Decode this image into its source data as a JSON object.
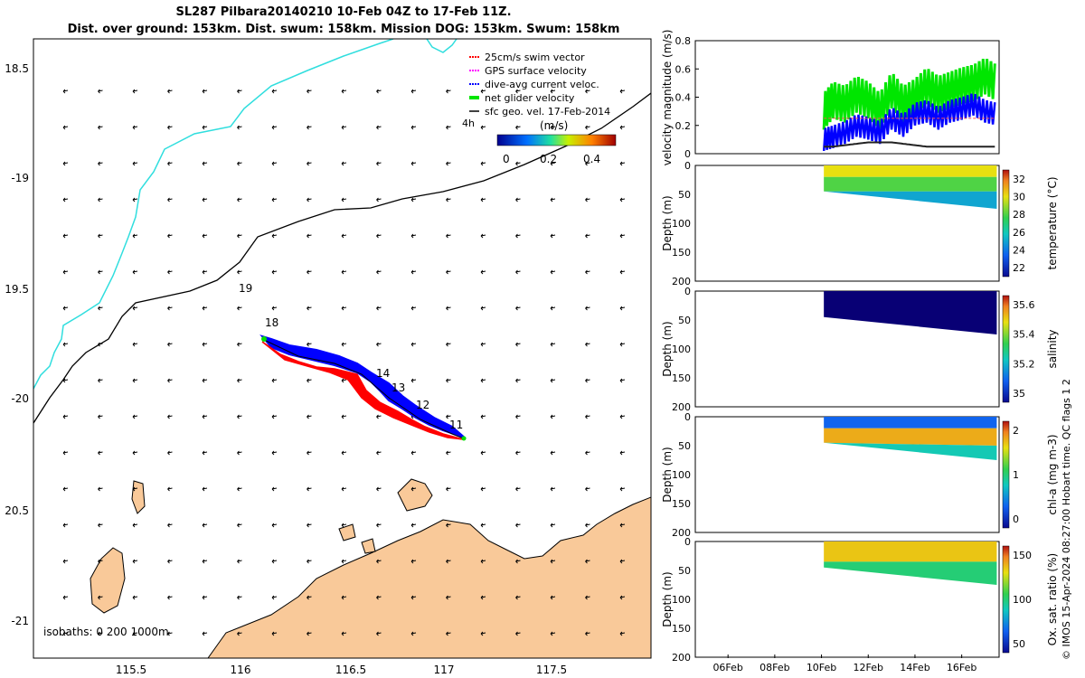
{
  "title": {
    "line1": "SL287 Pilbara20140210 10-Feb 04Z to 17-Feb 11Z.",
    "line2": "Dist. over ground: 153km. Dist. swum: 158km. Mission DOG: 153km. Swum: 158km"
  },
  "legend": {
    "items": [
      {
        "label": "25cm/s swim vector",
        "color": "#ff0000"
      },
      {
        "label": "GPS surface velocity",
        "color": "#ff00ff"
      },
      {
        "label": "dive-avg current veloc.",
        "color": "#0000ff"
      },
      {
        "label": "net glider velocity",
        "color": "#00e600"
      },
      {
        "label": "sfc geo. vel. 17-Feb-2014",
        "color": "#000000"
      }
    ],
    "time_label": "4h",
    "colorbar_unit": "(m/s)",
    "colorbar_ticks": [
      "0",
      "0.2",
      "0.4"
    ]
  },
  "colors": {
    "land": "#f9c999",
    "coast_line": "#30dede",
    "track_red": "#ff0000",
    "track_blue": "#0000ff"
  },
  "map": {
    "lat_ticks": [
      "18.5",
      "-19",
      "19.5",
      "-20",
      "20.5",
      "-21"
    ],
    "lon_ticks": [
      "115.5",
      "116",
      "116.5",
      "117",
      "117.5"
    ],
    "isobath_label": "isobaths: 0   200  1000m",
    "day_labels": [
      "19",
      "18",
      "14",
      "13",
      "12",
      "11"
    ]
  },
  "chart_data": [
    {
      "type": "line",
      "title": "",
      "ylabel": "velocity magnitude (m/s)",
      "ylim": [
        0,
        0.8
      ],
      "yticks": [
        "0",
        "0.2",
        "0.4",
        "0.6",
        "0.8"
      ],
      "x": [
        10.1,
        10.5,
        11,
        11.5,
        12,
        12.5,
        13,
        13.5,
        14,
        14.5,
        15,
        15.5,
        16,
        16.5,
        17,
        17.5
      ],
      "series": [
        {
          "name": "net glider velocity",
          "values": [
            0.3,
            0.38,
            0.35,
            0.42,
            0.38,
            0.3,
            0.45,
            0.35,
            0.4,
            0.48,
            0.42,
            0.45,
            0.48,
            0.5,
            0.55,
            0.5
          ]
        },
        {
          "name": "dive-avg current veloc.",
          "values": [
            0.1,
            0.12,
            0.15,
            0.2,
            0.18,
            0.15,
            0.25,
            0.2,
            0.28,
            0.3,
            0.25,
            0.3,
            0.32,
            0.35,
            0.3,
            0.28
          ]
        },
        {
          "name": "sfc geo. vel.",
          "values": [
            0.05,
            0.05,
            0.06,
            0.07,
            0.08,
            0.08,
            0.08,
            0.07,
            0.06,
            0.05,
            0.05,
            0.05,
            0.05,
            0.05,
            0.05,
            0.05
          ]
        },
        {
          "name": "25cm/s swim vector",
          "values": [
            0.25,
            0.25,
            0.25,
            0.25,
            0.25,
            0.25,
            0.25,
            0.25,
            0.25,
            0.25,
            0.25,
            0.25,
            0.25,
            0.25,
            0.25,
            0.25
          ]
        }
      ]
    },
    {
      "type": "heatmap",
      "ylabel": "Depth (m)",
      "yticks": [
        "0",
        "50",
        "100",
        "150",
        "200"
      ],
      "ylim": [
        200,
        0
      ],
      "colorbar_label": "temperature (°C)",
      "colorbar_ticks": [
        "32",
        "30",
        "28",
        "26",
        "24",
        "22"
      ],
      "profile_bottom": [
        {
          "day": 10.1,
          "depth": 45
        },
        {
          "day": 17.5,
          "depth": 75
        }
      ],
      "layers": [
        {
          "depth_from": 0,
          "depth_to": 20,
          "value": 30
        },
        {
          "depth_from": 20,
          "depth_to": 45,
          "value": 28
        },
        {
          "depth_from": 45,
          "depth_to": 75,
          "value": 25
        }
      ]
    },
    {
      "type": "heatmap",
      "ylabel": "Depth (m)",
      "yticks": [
        "0",
        "50",
        "100",
        "150",
        "200"
      ],
      "ylim": [
        200,
        0
      ],
      "colorbar_label": "salinity",
      "colorbar_ticks": [
        "35.6",
        "35.4",
        "35.2",
        "35"
      ],
      "profile_bottom": [
        {
          "day": 10.1,
          "depth": 45
        },
        {
          "day": 17.5,
          "depth": 75
        }
      ],
      "layers": [
        {
          "depth_from": 0,
          "depth_to": 75,
          "value": 34.9
        }
      ]
    },
    {
      "type": "heatmap",
      "ylabel": "Depth (m)",
      "yticks": [
        "0",
        "50",
        "100",
        "150",
        "200"
      ],
      "ylim": [
        200,
        0
      ],
      "colorbar_label": "chl-a (mg m-3)",
      "colorbar_ticks": [
        "2",
        "1",
        "0"
      ],
      "profile_bottom": [
        {
          "day": 10.1,
          "depth": 45
        },
        {
          "day": 17.5,
          "depth": 75
        }
      ],
      "layers": [
        {
          "depth_from": 0,
          "depth_to": 20,
          "value": 0.3
        },
        {
          "depth_from": 20,
          "depth_to": 50,
          "value": 1.8
        },
        {
          "depth_from": 50,
          "depth_to": 75,
          "value": 0.8
        }
      ]
    },
    {
      "type": "heatmap",
      "ylabel": "Depth (m)",
      "yticks": [
        "0",
        "50",
        "100",
        "150",
        "200"
      ],
      "ylim": [
        200,
        0
      ],
      "colorbar_label": "Ox. sat. ratio (%)",
      "colorbar_ticks": [
        "150",
        "100",
        "50"
      ],
      "profile_bottom": [
        {
          "day": 10.1,
          "depth": 45
        },
        {
          "day": 17.5,
          "depth": 75
        }
      ],
      "layers": [
        {
          "depth_from": 0,
          "depth_to": 35,
          "value": 135
        },
        {
          "depth_from": 35,
          "depth_to": 75,
          "value": 100
        }
      ]
    }
  ],
  "time_axis": {
    "ticks": [
      "06Feb",
      "08Feb",
      "10Feb",
      "12Feb",
      "14Feb",
      "16Feb"
    ]
  },
  "side_note": "© IMOS 15-Apr-2024 08:27:00 Hobart time. QC flags 1  2"
}
